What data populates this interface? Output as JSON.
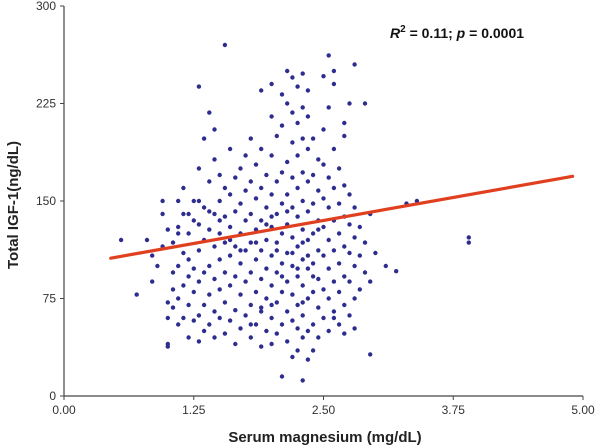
{
  "chart_data": {
    "type": "scatter",
    "xlabel": "Serum magnesium (mg/dL)",
    "ylabel": "Total IGF-1(ng/dL)",
    "xlim": [
      0,
      5
    ],
    "ylim": [
      0,
      300
    ],
    "x_ticks": [
      "0.00",
      "1.25",
      "2.50",
      "3.75",
      "5.00"
    ],
    "y_ticks": [
      "0",
      "75",
      "150",
      "225",
      "300"
    ],
    "grid": false,
    "annotation": {
      "r_label": "R",
      "r_power": "2",
      "r_value": " = 0.11; ",
      "p_label": "p",
      "p_value": " = 0.0001"
    },
    "colors": {
      "points": "#2e2d8f",
      "trend_line": "#e0401f",
      "axis": "#444444"
    },
    "trend_line": {
      "x": [
        0.45,
        4.9
      ],
      "y": [
        106,
        169
      ]
    },
    "points": [
      [
        0.55,
        120
      ],
      [
        0.7,
        78
      ],
      [
        0.8,
        120
      ],
      [
        0.85,
        108
      ],
      [
        0.85,
        88
      ],
      [
        0.9,
        100
      ],
      [
        0.95,
        150
      ],
      [
        0.95,
        140
      ],
      [
        0.95,
        115
      ],
      [
        1.0,
        38
      ],
      [
        1.0,
        40
      ],
      [
        1.0,
        60
      ],
      [
        1.0,
        72
      ],
      [
        1.05,
        68
      ],
      [
        1.05,
        82
      ],
      [
        1.05,
        95
      ],
      [
        1.05,
        118
      ],
      [
        1.1,
        55
      ],
      [
        1.1,
        75
      ],
      [
        1.1,
        100
      ],
      [
        1.1,
        130
      ],
      [
        1.1,
        150
      ],
      [
        1.15,
        60
      ],
      [
        1.15,
        85
      ],
      [
        1.15,
        110
      ],
      [
        1.15,
        140
      ],
      [
        1.15,
        160
      ],
      [
        1.2,
        45
      ],
      [
        1.2,
        70
      ],
      [
        1.2,
        92
      ],
      [
        1.2,
        105
      ],
      [
        1.2,
        125
      ],
      [
        1.25,
        58
      ],
      [
        1.25,
        80
      ],
      [
        1.25,
        98
      ],
      [
        1.25,
        135
      ],
      [
        1.25,
        150
      ],
      [
        1.3,
        42
      ],
      [
        1.3,
        62
      ],
      [
        1.3,
        88
      ],
      [
        1.3,
        112
      ],
      [
        1.3,
        132
      ],
      [
        1.3,
        175
      ],
      [
        1.3,
        238
      ],
      [
        1.35,
        50
      ],
      [
        1.35,
        70
      ],
      [
        1.35,
        95
      ],
      [
        1.35,
        120
      ],
      [
        1.35,
        145
      ],
      [
        1.35,
        198
      ],
      [
        1.4,
        55
      ],
      [
        1.4,
        78
      ],
      [
        1.4,
        100
      ],
      [
        1.4,
        128
      ],
      [
        1.4,
        165
      ],
      [
        1.4,
        218
      ],
      [
        1.45,
        45
      ],
      [
        1.45,
        65
      ],
      [
        1.45,
        90
      ],
      [
        1.45,
        115
      ],
      [
        1.45,
        140
      ],
      [
        1.45,
        182
      ],
      [
        1.45,
        205
      ],
      [
        1.5,
        60
      ],
      [
        1.5,
        82
      ],
      [
        1.5,
        105
      ],
      [
        1.5,
        125
      ],
      [
        1.5,
        150
      ],
      [
        1.5,
        170
      ],
      [
        1.55,
        48
      ],
      [
        1.55,
        72
      ],
      [
        1.55,
        95
      ],
      [
        1.55,
        118
      ],
      [
        1.55,
        138
      ],
      [
        1.55,
        160
      ],
      [
        1.55,
        270
      ],
      [
        1.6,
        58
      ],
      [
        1.6,
        85
      ],
      [
        1.6,
        108
      ],
      [
        1.6,
        130
      ],
      [
        1.6,
        155
      ],
      [
        1.6,
        190
      ],
      [
        1.65,
        40
      ],
      [
        1.65,
        66
      ],
      [
        1.65,
        92
      ],
      [
        1.65,
        115
      ],
      [
        1.65,
        142
      ],
      [
        1.65,
        168
      ],
      [
        1.7,
        52
      ],
      [
        1.7,
        78
      ],
      [
        1.7,
        102
      ],
      [
        1.7,
        125
      ],
      [
        1.7,
        148
      ],
      [
        1.7,
        175
      ],
      [
        1.75,
        62
      ],
      [
        1.75,
        88
      ],
      [
        1.75,
        112
      ],
      [
        1.75,
        135
      ],
      [
        1.75,
        158
      ],
      [
        1.75,
        185
      ],
      [
        1.8,
        45
      ],
      [
        1.8,
        70
      ],
      [
        1.8,
        95
      ],
      [
        1.8,
        118
      ],
      [
        1.8,
        140
      ],
      [
        1.8,
        165
      ],
      [
        1.8,
        198
      ],
      [
        1.85,
        55
      ],
      [
        1.85,
        80
      ],
      [
        1.85,
        105
      ],
      [
        1.85,
        128
      ],
      [
        1.85,
        152
      ],
      [
        1.85,
        178
      ],
      [
        1.9,
        38
      ],
      [
        1.9,
        65
      ],
      [
        1.9,
        90
      ],
      [
        1.9,
        112
      ],
      [
        1.9,
        135
      ],
      [
        1.9,
        160
      ],
      [
        1.9,
        190
      ],
      [
        1.9,
        235
      ],
      [
        1.95,
        50
      ],
      [
        1.95,
        75
      ],
      [
        1.95,
        98
      ],
      [
        1.95,
        120
      ],
      [
        1.95,
        145
      ],
      [
        1.95,
        170
      ],
      [
        2.0,
        40
      ],
      [
        2.0,
        60
      ],
      [
        2.0,
        85
      ],
      [
        2.0,
        108
      ],
      [
        2.0,
        130
      ],
      [
        2.0,
        155
      ],
      [
        2.0,
        185
      ],
      [
        2.0,
        215
      ],
      [
        2.0,
        240
      ],
      [
        2.05,
        48
      ],
      [
        2.05,
        72
      ],
      [
        2.05,
        95
      ],
      [
        2.05,
        118
      ],
      [
        2.05,
        140
      ],
      [
        2.05,
        165
      ],
      [
        2.05,
        200
      ],
      [
        2.1,
        15
      ],
      [
        2.1,
        55
      ],
      [
        2.1,
        80
      ],
      [
        2.1,
        102
      ],
      [
        2.1,
        125
      ],
      [
        2.1,
        148
      ],
      [
        2.1,
        172
      ],
      [
        2.1,
        208
      ],
      [
        2.1,
        232
      ],
      [
        2.15,
        42
      ],
      [
        2.15,
        65
      ],
      [
        2.15,
        88
      ],
      [
        2.15,
        110
      ],
      [
        2.15,
        132
      ],
      [
        2.15,
        155
      ],
      [
        2.15,
        180
      ],
      [
        2.15,
        225
      ],
      [
        2.15,
        250
      ],
      [
        2.2,
        30
      ],
      [
        2.2,
        58
      ],
      [
        2.2,
        78
      ],
      [
        2.2,
        100
      ],
      [
        2.2,
        122
      ],
      [
        2.2,
        145
      ],
      [
        2.2,
        168
      ],
      [
        2.2,
        195
      ],
      [
        2.2,
        218
      ],
      [
        2.2,
        245
      ],
      [
        2.25,
        35
      ],
      [
        2.25,
        52
      ],
      [
        2.25,
        70
      ],
      [
        2.25,
        92
      ],
      [
        2.25,
        115
      ],
      [
        2.25,
        138
      ],
      [
        2.25,
        160
      ],
      [
        2.25,
        185
      ],
      [
        2.25,
        210
      ],
      [
        2.25,
        238
      ],
      [
        2.3,
        12
      ],
      [
        2.3,
        45
      ],
      [
        2.3,
        62
      ],
      [
        2.3,
        85
      ],
      [
        2.3,
        105
      ],
      [
        2.3,
        128
      ],
      [
        2.3,
        150
      ],
      [
        2.3,
        172
      ],
      [
        2.3,
        198
      ],
      [
        2.3,
        222
      ],
      [
        2.3,
        248
      ],
      [
        2.35,
        28
      ],
      [
        2.35,
        50
      ],
      [
        2.35,
        75
      ],
      [
        2.35,
        98
      ],
      [
        2.35,
        120
      ],
      [
        2.35,
        142
      ],
      [
        2.35,
        165
      ],
      [
        2.35,
        190
      ],
      [
        2.35,
        215
      ],
      [
        2.4,
        55
      ],
      [
        2.4,
        80
      ],
      [
        2.4,
        102
      ],
      [
        2.4,
        125
      ],
      [
        2.4,
        148
      ],
      [
        2.4,
        170
      ],
      [
        2.4,
        198
      ],
      [
        2.45,
        45
      ],
      [
        2.45,
        68
      ],
      [
        2.45,
        90
      ],
      [
        2.45,
        112
      ],
      [
        2.45,
        135
      ],
      [
        2.45,
        158
      ],
      [
        2.45,
        182
      ],
      [
        2.5,
        60
      ],
      [
        2.5,
        82
      ],
      [
        2.5,
        108
      ],
      [
        2.5,
        130
      ],
      [
        2.5,
        152
      ],
      [
        2.5,
        178
      ],
      [
        2.5,
        205
      ],
      [
        2.55,
        50
      ],
      [
        2.55,
        75
      ],
      [
        2.55,
        98
      ],
      [
        2.55,
        120
      ],
      [
        2.55,
        145
      ],
      [
        2.55,
        168
      ],
      [
        2.55,
        222
      ],
      [
        2.6,
        65
      ],
      [
        2.6,
        88
      ],
      [
        2.6,
        112
      ],
      [
        2.6,
        135
      ],
      [
        2.6,
        160
      ],
      [
        2.6,
        190
      ],
      [
        2.6,
        240
      ],
      [
        2.65,
        55
      ],
      [
        2.65,
        80
      ],
      [
        2.65,
        102
      ],
      [
        2.65,
        125
      ],
      [
        2.65,
        148
      ],
      [
        2.65,
        175
      ],
      [
        2.7,
        70
      ],
      [
        2.7,
        92
      ],
      [
        2.7,
        115
      ],
      [
        2.7,
        138
      ],
      [
        2.7,
        162
      ],
      [
        2.7,
        200
      ],
      [
        2.75,
        62
      ],
      [
        2.75,
        88
      ],
      [
        2.75,
        110
      ],
      [
        2.75,
        132
      ],
      [
        2.75,
        155
      ],
      [
        2.75,
        225
      ],
      [
        2.8,
        75
      ],
      [
        2.8,
        100
      ],
      [
        2.8,
        122
      ],
      [
        2.8,
        145
      ],
      [
        2.85,
        82
      ],
      [
        2.85,
        108
      ],
      [
        2.85,
        130
      ],
      [
        2.9,
        95
      ],
      [
        2.9,
        118
      ],
      [
        2.95,
        32
      ],
      [
        2.95,
        88
      ],
      [
        2.95,
        140
      ],
      [
        3.0,
        110
      ],
      [
        3.1,
        100
      ],
      [
        3.2,
        96
      ],
      [
        3.3,
        148
      ],
      [
        3.4,
        150
      ],
      [
        3.9,
        118
      ],
      [
        3.9,
        122
      ],
      [
        2.0,
        138
      ],
      [
        2.05,
        112
      ],
      [
        2.1,
        92
      ],
      [
        2.15,
        142
      ],
      [
        2.2,
        110
      ],
      [
        2.25,
        98
      ],
      [
        2.3,
        118
      ],
      [
        2.35,
        108
      ],
      [
        2.4,
        92
      ],
      [
        2.45,
        128
      ],
      [
        1.95,
        132
      ],
      [
        1.85,
        118
      ],
      [
        2.6,
        250
      ],
      [
        2.55,
        262
      ],
      [
        2.8,
        255
      ],
      [
        2.5,
        246
      ],
      [
        2.35,
        235
      ],
      [
        2.7,
        210
      ],
      [
        2.9,
        225
      ],
      [
        1.6,
        120
      ],
      [
        1.7,
        112
      ],
      [
        1.5,
        135
      ],
      [
        1.4,
        142
      ],
      [
        1.3,
        150
      ],
      [
        1.2,
        140
      ],
      [
        1.1,
        125
      ],
      [
        1.0,
        128
      ],
      [
        2.4,
        35
      ],
      [
        2.3,
        72
      ],
      [
        2.0,
        70
      ],
      [
        1.8,
        55
      ],
      [
        1.9,
        68
      ],
      [
        2.6,
        60
      ],
      [
        2.7,
        48
      ],
      [
        2.8,
        52
      ]
    ]
  }
}
